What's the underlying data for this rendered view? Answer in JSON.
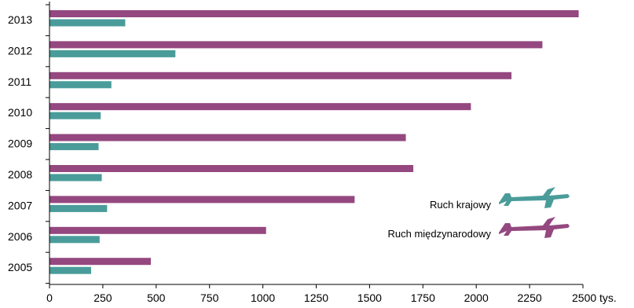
{
  "chart_data": {
    "type": "bar",
    "orientation": "horizontal",
    "title": "",
    "xlabel": "",
    "ylabel": "",
    "x_unit": "tys.",
    "xlim": [
      0,
      2500
    ],
    "x_ticks": [
      0,
      250,
      500,
      750,
      1000,
      1250,
      1500,
      1750,
      2000,
      2250,
      2500
    ],
    "x_tick_labels": [
      "0",
      "250",
      "500",
      "750",
      "1000",
      "1250",
      "1500",
      "1750",
      "2000",
      "2250",
      "2500 tys."
    ],
    "categories": [
      "2013",
      "2012",
      "2011",
      "2010",
      "2009",
      "2008",
      "2007",
      "2006",
      "2005"
    ],
    "series": [
      {
        "name": "Ruch międzynarodowy",
        "color": "#94487f",
        "values": [
          2480,
          2310,
          2165,
          1975,
          1670,
          1705,
          1430,
          1015,
          475
        ]
      },
      {
        "name": "Ruch krajowy",
        "color": "#4a9c9a",
        "values": [
          355,
          590,
          290,
          240,
          230,
          245,
          270,
          235,
          195
        ]
      }
    ],
    "grid": false,
    "legend_position": "right",
    "legend_icon": "airplane-icon"
  }
}
